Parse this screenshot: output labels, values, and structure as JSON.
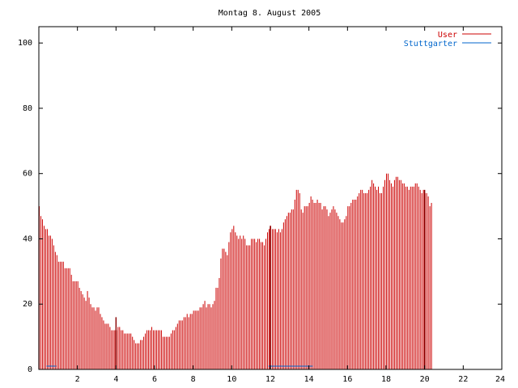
{
  "chart_data": {
    "type": "bar",
    "title": "Montag 8. August 2005",
    "xlabel": "",
    "ylabel": "",
    "xlim": [
      0,
      24
    ],
    "ylim": [
      0,
      105
    ],
    "x_ticks": [
      2,
      4,
      6,
      8,
      10,
      12,
      14,
      16,
      18,
      20,
      22,
      24
    ],
    "y_ticks": [
      0,
      20,
      40,
      60,
      80,
      100
    ],
    "grid": false,
    "legend": "top-right",
    "sample_interval_hours": 0.08333,
    "series": [
      {
        "name": "User",
        "color": "#cc0000",
        "values": [
          50,
          47,
          46,
          44,
          43,
          43,
          41,
          41,
          40,
          38,
          36,
          35,
          33,
          33,
          33,
          33,
          31,
          31,
          31,
          31,
          29,
          27,
          27,
          27,
          27,
          25,
          24,
          23,
          22,
          21,
          24,
          22,
          20,
          19,
          19,
          18,
          19,
          19,
          17,
          16,
          15,
          14,
          14,
          14,
          13,
          12,
          12,
          12,
          12,
          13,
          13,
          12,
          12,
          11,
          11,
          11,
          11,
          11,
          10,
          9,
          8,
          8,
          8,
          9,
          9,
          10,
          11,
          12,
          12,
          12,
          13,
          12,
          12,
          12,
          12,
          12,
          12,
          10,
          10,
          10,
          10,
          10,
          11,
          12,
          12,
          13,
          14,
          15,
          15,
          15,
          16,
          16,
          17,
          16,
          17,
          17,
          18,
          18,
          18,
          18,
          19,
          19,
          20,
          21,
          19,
          20,
          20,
          19,
          20,
          21,
          25,
          25,
          28,
          34,
          37,
          37,
          36,
          35,
          39,
          42,
          43,
          44,
          42,
          41,
          40,
          41,
          40,
          41,
          40,
          38,
          38,
          38,
          40,
          40,
          40,
          39,
          40,
          40,
          39,
          39,
          38,
          40,
          42,
          43,
          44,
          43,
          43,
          43,
          42,
          43,
          42,
          43,
          45,
          46,
          47,
          48,
          48,
          49,
          49,
          52,
          55,
          55,
          54,
          49,
          48,
          50,
          50,
          50,
          51,
          53,
          52,
          51,
          51,
          52,
          51,
          51,
          49,
          50,
          50,
          49,
          47,
          48,
          49,
          50,
          49,
          48,
          47,
          46,
          45,
          45,
          46,
          47,
          50,
          50,
          51,
          52,
          52,
          52,
          53,
          54,
          55,
          55,
          54,
          54,
          54,
          55,
          56,
          58,
          57,
          56,
          55,
          56,
          54,
          54,
          56,
          58,
          60,
          60,
          58,
          57,
          56,
          58,
          59,
          59,
          58,
          58,
          57,
          57,
          56,
          56,
          55,
          56,
          56,
          56,
          57,
          57,
          56,
          55,
          54,
          55,
          54,
          54,
          53,
          50,
          51
        ],
        "spikes": [
          {
            "x": 4.0,
            "value": 16
          },
          {
            "x": 12.0,
            "value": 44
          },
          {
            "x": 20.0,
            "value": 55
          }
        ]
      },
      {
        "name": "Stuttgarter",
        "color": "#0066cc",
        "segments": [
          {
            "x_start": 0.4,
            "x_end": 0.9,
            "value": 1
          },
          {
            "x_start": 11.9,
            "x_end": 14.2,
            "value": 1
          }
        ]
      }
    ]
  }
}
